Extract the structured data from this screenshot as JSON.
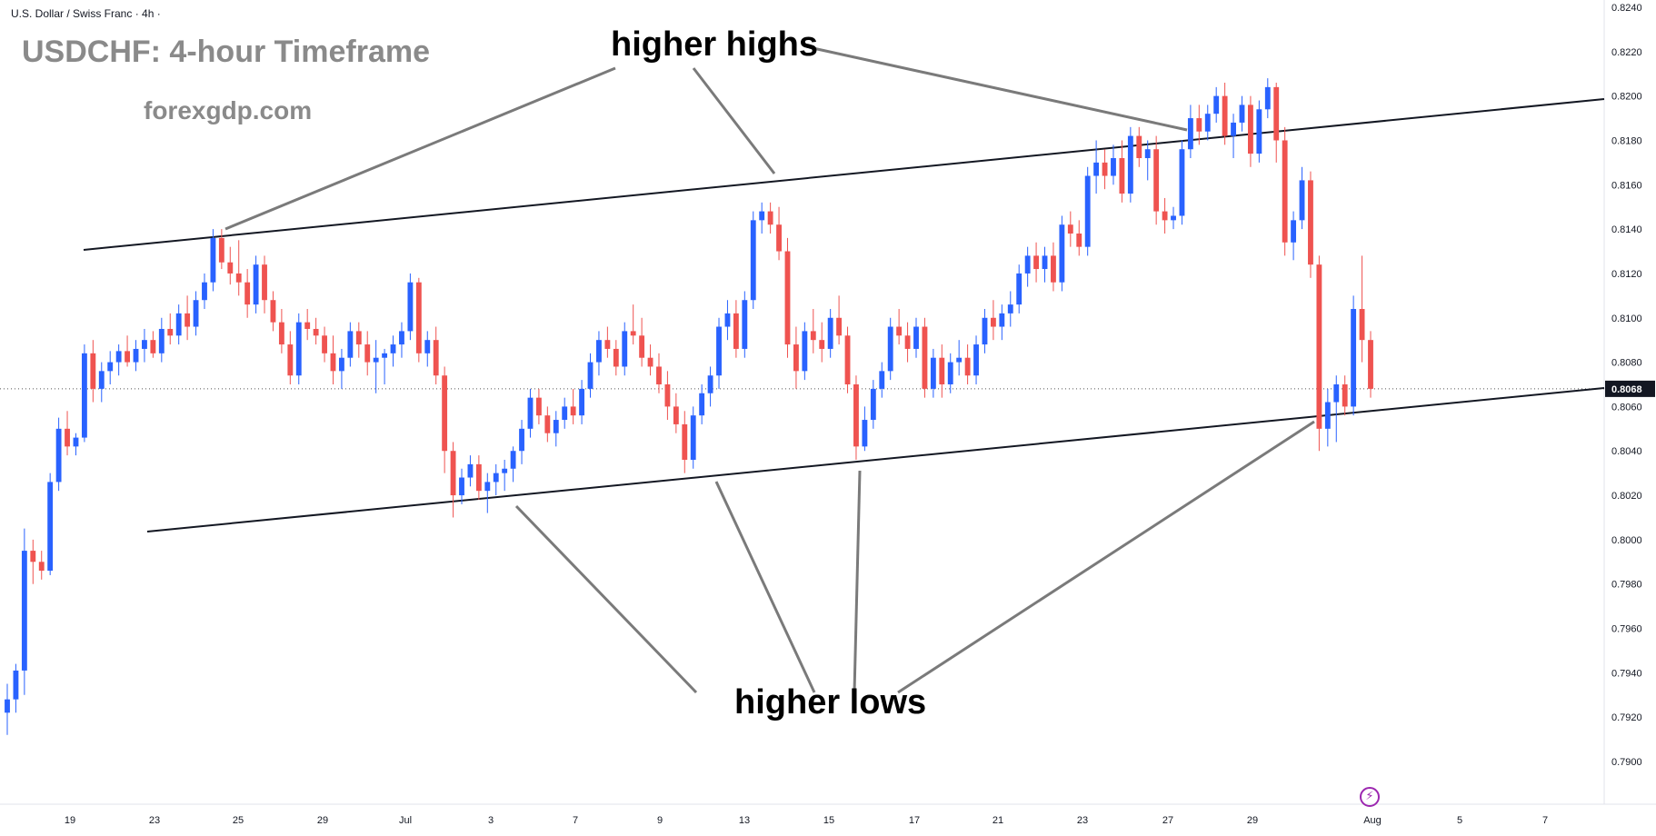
{
  "header": {
    "symbol_label": "U.S. Dollar / Swiss Franc · 4h ·",
    "title": "USDCHF: 4-hour Timeframe",
    "subtitle": "forexgdp.com"
  },
  "annotations": {
    "higher_highs": "higher highs",
    "higher_lows": "higher lows"
  },
  "flash_icon": "lightning-icon",
  "colors": {
    "up": "#2962ff",
    "down": "#ef5350",
    "trendline": "#131722",
    "arrow": "#7a7a7a",
    "price_label_bg": "#131722",
    "axis_text": "#131722"
  },
  "chart_data": {
    "type": "candlestick",
    "symbol": "USDCHF",
    "timeframe": "4h",
    "ylim": [
      0.7885,
      0.8245
    ],
    "y_ticks": [
      "0.8240",
      "0.8220",
      "0.8200",
      "0.8180",
      "0.8160",
      "0.8140",
      "0.8120",
      "0.8100",
      "0.8080",
      "0.8060",
      "0.8040",
      "0.8020",
      "0.8000",
      "0.7980",
      "0.7960",
      "0.7940",
      "0.7920",
      "0.7900"
    ],
    "x_ticks": [
      "19",
      "23",
      "25",
      "29",
      "Jul",
      "3",
      "7",
      "9",
      "13",
      "15",
      "17",
      "21",
      "23",
      "27",
      "29",
      "Aug",
      "5",
      "7"
    ],
    "current_price": "0.8068",
    "candles": [
      [
        0.7922,
        0.7935,
        0.7912,
        0.7928
      ],
      [
        0.7928,
        0.7944,
        0.7922,
        0.7941
      ],
      [
        0.7941,
        0.8005,
        0.793,
        0.7995
      ],
      [
        0.7995,
        0.8,
        0.798,
        0.799
      ],
      [
        0.799,
        0.7995,
        0.7982,
        0.7986
      ],
      [
        0.7986,
        0.803,
        0.7984,
        0.8026
      ],
      [
        0.8026,
        0.8055,
        0.8022,
        0.805
      ],
      [
        0.805,
        0.8058,
        0.8038,
        0.8042
      ],
      [
        0.8042,
        0.8048,
        0.8038,
        0.8046
      ],
      [
        0.8046,
        0.8088,
        0.8044,
        0.8084
      ],
      [
        0.8084,
        0.809,
        0.8062,
        0.8068
      ],
      [
        0.8068,
        0.808,
        0.8062,
        0.8076
      ],
      [
        0.8076,
        0.8085,
        0.807,
        0.808
      ],
      [
        0.808,
        0.8088,
        0.8074,
        0.8085
      ],
      [
        0.8085,
        0.8092,
        0.8078,
        0.808
      ],
      [
        0.808,
        0.809,
        0.8076,
        0.8086
      ],
      [
        0.8086,
        0.8095,
        0.808,
        0.809
      ],
      [
        0.809,
        0.8094,
        0.8082,
        0.8084
      ],
      [
        0.8084,
        0.81,
        0.808,
        0.8095
      ],
      [
        0.8095,
        0.8102,
        0.8088,
        0.8092
      ],
      [
        0.8092,
        0.8106,
        0.8088,
        0.8102
      ],
      [
        0.8102,
        0.811,
        0.809,
        0.8096
      ],
      [
        0.8096,
        0.8112,
        0.8092,
        0.8108
      ],
      [
        0.8108,
        0.812,
        0.8104,
        0.8116
      ],
      [
        0.8116,
        0.814,
        0.8112,
        0.8136
      ],
      [
        0.8136,
        0.814,
        0.8122,
        0.8125
      ],
      [
        0.8125,
        0.8132,
        0.8115,
        0.812
      ],
      [
        0.812,
        0.8135,
        0.811,
        0.8116
      ],
      [
        0.8116,
        0.8122,
        0.81,
        0.8106
      ],
      [
        0.8106,
        0.8128,
        0.8102,
        0.8124
      ],
      [
        0.8124,
        0.8128,
        0.8102,
        0.8108
      ],
      [
        0.8108,
        0.8112,
        0.8094,
        0.8098
      ],
      [
        0.8098,
        0.8104,
        0.8084,
        0.8088
      ],
      [
        0.8088,
        0.8094,
        0.807,
        0.8074
      ],
      [
        0.8074,
        0.8102,
        0.807,
        0.8098
      ],
      [
        0.8098,
        0.8104,
        0.809,
        0.8095
      ],
      [
        0.8095,
        0.81,
        0.8088,
        0.8092
      ],
      [
        0.8092,
        0.8096,
        0.808,
        0.8084
      ],
      [
        0.8084,
        0.8092,
        0.807,
        0.8076
      ],
      [
        0.8076,
        0.8086,
        0.8068,
        0.8082
      ],
      [
        0.8082,
        0.8098,
        0.8078,
        0.8094
      ],
      [
        0.8094,
        0.8098,
        0.8082,
        0.8088
      ],
      [
        0.8088,
        0.8094,
        0.8074,
        0.808
      ],
      [
        0.808,
        0.809,
        0.8066,
        0.8082
      ],
      [
        0.8082,
        0.8086,
        0.807,
        0.8084
      ],
      [
        0.8084,
        0.8092,
        0.8078,
        0.8088
      ],
      [
        0.8088,
        0.8098,
        0.8082,
        0.8094
      ],
      [
        0.8094,
        0.812,
        0.809,
        0.8116
      ],
      [
        0.8116,
        0.8118,
        0.808,
        0.8084
      ],
      [
        0.8084,
        0.8094,
        0.8078,
        0.809
      ],
      [
        0.809,
        0.8096,
        0.807,
        0.8074
      ],
      [
        0.8074,
        0.8078,
        0.803,
        0.804
      ],
      [
        0.804,
        0.8044,
        0.801,
        0.802
      ],
      [
        0.802,
        0.8032,
        0.8016,
        0.8028
      ],
      [
        0.8028,
        0.8038,
        0.8024,
        0.8034
      ],
      [
        0.8034,
        0.8038,
        0.8018,
        0.8022
      ],
      [
        0.8022,
        0.803,
        0.8012,
        0.8026
      ],
      [
        0.8026,
        0.8034,
        0.802,
        0.803
      ],
      [
        0.803,
        0.8036,
        0.8022,
        0.8032
      ],
      [
        0.8032,
        0.8042,
        0.8026,
        0.804
      ],
      [
        0.804,
        0.8054,
        0.8034,
        0.805
      ],
      [
        0.805,
        0.8068,
        0.8046,
        0.8064
      ],
      [
        0.8064,
        0.8068,
        0.8052,
        0.8056
      ],
      [
        0.8056,
        0.806,
        0.8044,
        0.8048
      ],
      [
        0.8048,
        0.8058,
        0.8042,
        0.8054
      ],
      [
        0.8054,
        0.8064,
        0.805,
        0.806
      ],
      [
        0.806,
        0.8068,
        0.8052,
        0.8056
      ],
      [
        0.8056,
        0.8072,
        0.8052,
        0.8068
      ],
      [
        0.8068,
        0.8084,
        0.8064,
        0.808
      ],
      [
        0.808,
        0.8094,
        0.8074,
        0.809
      ],
      [
        0.809,
        0.8096,
        0.8082,
        0.8086
      ],
      [
        0.8086,
        0.809,
        0.8074,
        0.8078
      ],
      [
        0.8078,
        0.8098,
        0.8074,
        0.8094
      ],
      [
        0.8094,
        0.8106,
        0.8088,
        0.8092
      ],
      [
        0.8092,
        0.81,
        0.8078,
        0.8082
      ],
      [
        0.8082,
        0.8088,
        0.8074,
        0.8078
      ],
      [
        0.8078,
        0.8084,
        0.8066,
        0.807
      ],
      [
        0.807,
        0.8076,
        0.8054,
        0.806
      ],
      [
        0.806,
        0.8066,
        0.8048,
        0.8052
      ],
      [
        0.8052,
        0.8058,
        0.803,
        0.8036
      ],
      [
        0.8036,
        0.806,
        0.8032,
        0.8056
      ],
      [
        0.8056,
        0.807,
        0.8052,
        0.8066
      ],
      [
        0.8066,
        0.8078,
        0.806,
        0.8074
      ],
      [
        0.8074,
        0.81,
        0.8068,
        0.8096
      ],
      [
        0.8096,
        0.8108,
        0.809,
        0.8102
      ],
      [
        0.8102,
        0.8108,
        0.8082,
        0.8086
      ],
      [
        0.8086,
        0.8112,
        0.8082,
        0.8108
      ],
      [
        0.8108,
        0.8148,
        0.8104,
        0.8144
      ],
      [
        0.8144,
        0.8152,
        0.8138,
        0.8148
      ],
      [
        0.8148,
        0.8152,
        0.8138,
        0.8142
      ],
      [
        0.8142,
        0.815,
        0.8126,
        0.813
      ],
      [
        0.813,
        0.8136,
        0.8082,
        0.8088
      ],
      [
        0.8088,
        0.8096,
        0.8068,
        0.8076
      ],
      [
        0.8076,
        0.8098,
        0.8072,
        0.8094
      ],
      [
        0.8094,
        0.8104,
        0.8084,
        0.809
      ],
      [
        0.809,
        0.8098,
        0.808,
        0.8086
      ],
      [
        0.8086,
        0.8104,
        0.8082,
        0.81
      ],
      [
        0.81,
        0.811,
        0.8088,
        0.8092
      ],
      [
        0.8092,
        0.8096,
        0.8066,
        0.807
      ],
      [
        0.807,
        0.8074,
        0.8036,
        0.8042
      ],
      [
        0.8042,
        0.806,
        0.804,
        0.8054
      ],
      [
        0.8054,
        0.8072,
        0.805,
        0.8068
      ],
      [
        0.8068,
        0.808,
        0.8064,
        0.8076
      ],
      [
        0.8076,
        0.81,
        0.8072,
        0.8096
      ],
      [
        0.8096,
        0.8104,
        0.8088,
        0.8092
      ],
      [
        0.8092,
        0.8098,
        0.808,
        0.8086
      ],
      [
        0.8086,
        0.81,
        0.8082,
        0.8096
      ],
      [
        0.8096,
        0.81,
        0.8064,
        0.8068
      ],
      [
        0.8068,
        0.8086,
        0.8064,
        0.8082
      ],
      [
        0.8082,
        0.8088,
        0.8064,
        0.807
      ],
      [
        0.807,
        0.8084,
        0.8066,
        0.808
      ],
      [
        0.808,
        0.809,
        0.8074,
        0.8082
      ],
      [
        0.8082,
        0.8088,
        0.807,
        0.8074
      ],
      [
        0.8074,
        0.8092,
        0.807,
        0.8088
      ],
      [
        0.8088,
        0.8104,
        0.8084,
        0.81
      ],
      [
        0.81,
        0.8108,
        0.809,
        0.8096
      ],
      [
        0.8096,
        0.8106,
        0.809,
        0.8102
      ],
      [
        0.8102,
        0.8112,
        0.8096,
        0.8106
      ],
      [
        0.8106,
        0.8124,
        0.8102,
        0.812
      ],
      [
        0.812,
        0.8132,
        0.8114,
        0.8128
      ],
      [
        0.8128,
        0.8134,
        0.8116,
        0.8122
      ],
      [
        0.8122,
        0.8132,
        0.8116,
        0.8128
      ],
      [
        0.8128,
        0.8134,
        0.8112,
        0.8116
      ],
      [
        0.8116,
        0.8146,
        0.8112,
        0.8142
      ],
      [
        0.8142,
        0.8148,
        0.8132,
        0.8138
      ],
      [
        0.8138,
        0.8144,
        0.8128,
        0.8132
      ],
      [
        0.8132,
        0.8168,
        0.8128,
        0.8164
      ],
      [
        0.8164,
        0.818,
        0.8156,
        0.817
      ],
      [
        0.817,
        0.8176,
        0.8158,
        0.8164
      ],
      [
        0.8164,
        0.8178,
        0.816,
        0.8172
      ],
      [
        0.8172,
        0.818,
        0.8152,
        0.8156
      ],
      [
        0.8156,
        0.8186,
        0.8152,
        0.8182
      ],
      [
        0.8182,
        0.8186,
        0.8168,
        0.8172
      ],
      [
        0.8172,
        0.818,
        0.8162,
        0.8176
      ],
      [
        0.8176,
        0.8182,
        0.8142,
        0.8148
      ],
      [
        0.8148,
        0.8154,
        0.8138,
        0.8144
      ],
      [
        0.8144,
        0.815,
        0.814,
        0.8146
      ],
      [
        0.8146,
        0.818,
        0.8142,
        0.8176
      ],
      [
        0.8176,
        0.8196,
        0.8172,
        0.819
      ],
      [
        0.819,
        0.8196,
        0.8178,
        0.8184
      ],
      [
        0.8184,
        0.8196,
        0.818,
        0.8192
      ],
      [
        0.8192,
        0.8204,
        0.8188,
        0.82
      ],
      [
        0.82,
        0.8206,
        0.8178,
        0.8182
      ],
      [
        0.8182,
        0.8192,
        0.8172,
        0.8188
      ],
      [
        0.8188,
        0.82,
        0.8184,
        0.8196
      ],
      [
        0.8196,
        0.82,
        0.8168,
        0.8174
      ],
      [
        0.8174,
        0.8198,
        0.817,
        0.8194
      ],
      [
        0.8194,
        0.8208,
        0.819,
        0.8204
      ],
      [
        0.8204,
        0.8206,
        0.817,
        0.818
      ],
      [
        0.818,
        0.8186,
        0.8128,
        0.8134
      ],
      [
        0.8134,
        0.8148,
        0.8126,
        0.8144
      ],
      [
        0.8144,
        0.8168,
        0.814,
        0.8162
      ],
      [
        0.8162,
        0.8166,
        0.8118,
        0.8124
      ],
      [
        0.8124,
        0.8128,
        0.804,
        0.805
      ],
      [
        0.805,
        0.8068,
        0.8042,
        0.8062
      ],
      [
        0.8062,
        0.8074,
        0.8044,
        0.807
      ],
      [
        0.807,
        0.8074,
        0.8056,
        0.806
      ],
      [
        0.806,
        0.811,
        0.8056,
        0.8104
      ],
      [
        0.8104,
        0.8128,
        0.808,
        0.809
      ],
      [
        0.809,
        0.8094,
        0.8064,
        0.8068
      ]
    ]
  }
}
